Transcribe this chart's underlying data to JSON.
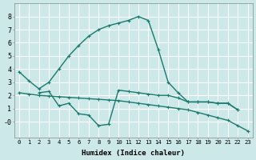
{
  "xlabel": "Humidex (Indice chaleur)",
  "bg_color": "#cce8e8",
  "grid_color": "#ffffff",
  "line_color": "#1a7a6e",
  "xlim": [
    -0.5,
    23.5
  ],
  "ylim": [
    -1.2,
    9.0
  ],
  "xticks": [
    0,
    1,
    2,
    3,
    4,
    5,
    6,
    7,
    8,
    9,
    10,
    11,
    12,
    13,
    14,
    15,
    16,
    17,
    18,
    19,
    20,
    21,
    22,
    23
  ],
  "yticks": [
    0,
    1,
    2,
    3,
    4,
    5,
    6,
    7,
    8
  ],
  "ytick_labels": [
    "-0",
    "1",
    "2",
    "3",
    "4",
    "5",
    "6",
    "7",
    "8"
  ],
  "line1_x": [
    0,
    1,
    2,
    3,
    4,
    5,
    6,
    7,
    8,
    9,
    10,
    11,
    12,
    13,
    14,
    15,
    16,
    17,
    18,
    19,
    20,
    21,
    22
  ],
  "line1_y": [
    3.8,
    3.1,
    2.5,
    3.0,
    4.0,
    5.0,
    5.8,
    6.5,
    7.0,
    7.3,
    7.5,
    7.7,
    8.0,
    7.7,
    5.5,
    3.0,
    2.2,
    1.5,
    1.5,
    1.5,
    1.4,
    1.4,
    0.9
  ],
  "line2_x": [
    2,
    3,
    4,
    5,
    6,
    7,
    8,
    9,
    10,
    11,
    12,
    13,
    14,
    15,
    16,
    17,
    18,
    19,
    20,
    21,
    22
  ],
  "line2_y": [
    2.2,
    2.3,
    1.2,
    1.4,
    0.6,
    0.5,
    -0.3,
    -0.2,
    2.4,
    2.3,
    2.2,
    2.1,
    2.0,
    2.0,
    1.8,
    1.5,
    1.5,
    1.5,
    1.4,
    1.4,
    0.9
  ],
  "line3_x": [
    0,
    1,
    2,
    3,
    4,
    5,
    6,
    7,
    8,
    9,
    10,
    11,
    12,
    13,
    14,
    15,
    16,
    17,
    18,
    19,
    20,
    21,
    22,
    23
  ],
  "line3_y": [
    2.2,
    2.1,
    2.0,
    1.95,
    1.9,
    1.85,
    1.8,
    1.75,
    1.7,
    1.65,
    1.6,
    1.5,
    1.4,
    1.3,
    1.2,
    1.1,
    1.0,
    0.9,
    0.7,
    0.5,
    0.3,
    0.1,
    -0.3,
    -0.7
  ]
}
